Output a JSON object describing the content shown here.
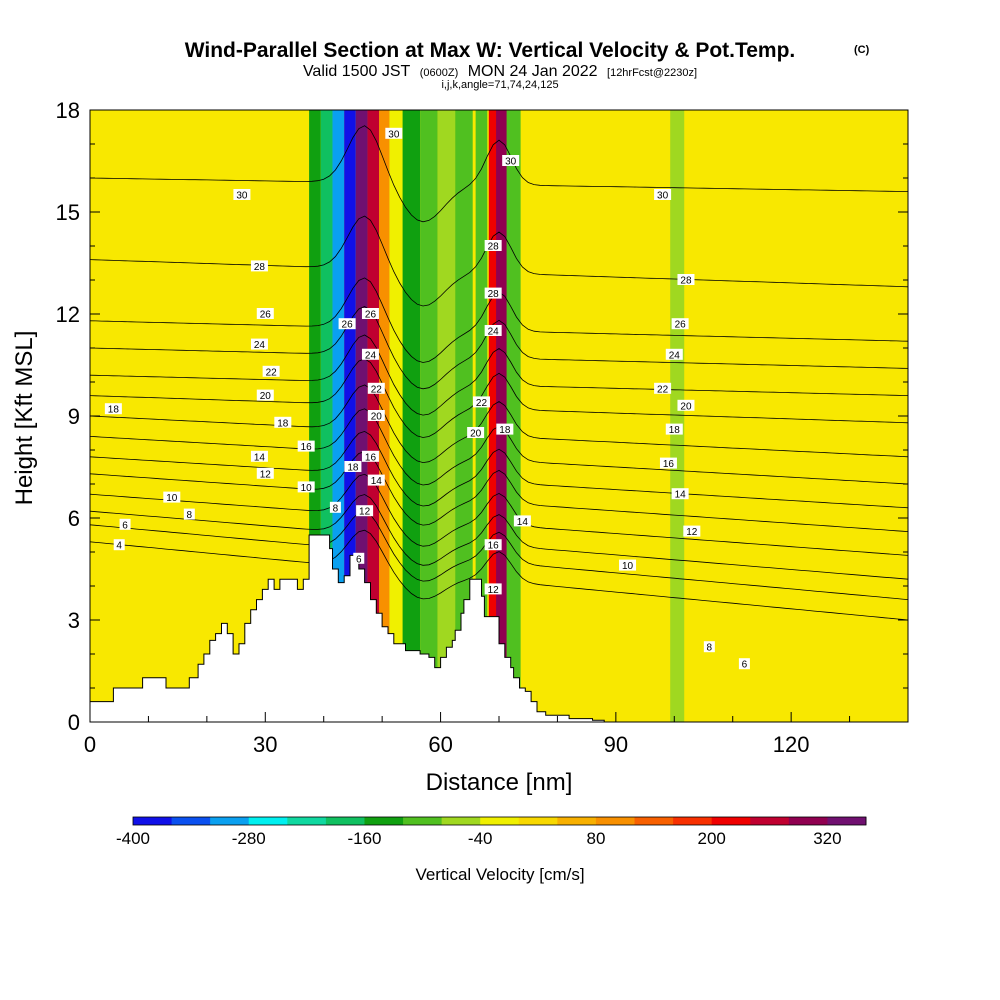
{
  "chart_data": {
    "type": "heatmap",
    "title": "Wind-Parallel Section at Max W: Vertical Velocity & Pot.Temp.",
    "title_mark": "(C)",
    "subtitle_main": "Valid 1500 JST",
    "subtitle_utc": "(0600Z)",
    "subtitle_date": "MON 24 Jan 2022",
    "subtitle_fcst": "[12hrFcst@2230z]",
    "index_line": "i,j,k,angle=71,74,24,125",
    "xlabel": "Distance [nm]",
    "ylabel": "Height [Kft MSL]",
    "xlim": [
      0,
      140
    ],
    "ylim": [
      0,
      18
    ],
    "x_ticks": [
      0,
      30,
      60,
      90,
      120
    ],
    "y_ticks": [
      0,
      3,
      6,
      9,
      12,
      15,
      18
    ],
    "colorbar": {
      "label": "Vertical Velocity [cm/s]",
      "min": -400,
      "max": 360,
      "step": 40,
      "tick_values": [
        -400,
        -280,
        -160,
        -40,
        80,
        200,
        320
      ],
      "colors": [
        "#1010e8",
        "#0a50f0",
        "#0aa0f0",
        "#00f0f0",
        "#10d8a0",
        "#10c060",
        "#10a010",
        "#50c020",
        "#a0d820",
        "#f0f000",
        "#f8d800",
        "#f8b000",
        "#f89000",
        "#f86000",
        "#f83000",
        "#f00000",
        "#c00030",
        "#900050",
        "#701070"
      ]
    },
    "velocity_columns": [
      {
        "x": 38.5,
        "value": -140
      },
      {
        "x": 40.5,
        "value": -180
      },
      {
        "x": 42.5,
        "value": -300
      },
      {
        "x": 44.5,
        "value": -400
      },
      {
        "x": 46.5,
        "value": 360
      },
      {
        "x": 48.5,
        "value": 240
      },
      {
        "x": 50.5,
        "value": 100
      },
      {
        "x": 52.5,
        "value": -40
      },
      {
        "x": 55,
        "value": -160
      },
      {
        "x": 58,
        "value": -100
      },
      {
        "x": 61,
        "value": -60
      },
      {
        "x": 64,
        "value": -120
      },
      {
        "x": 67,
        "value": -100
      },
      {
        "x": 69,
        "value": 200
      },
      {
        "x": 70.5,
        "value": 280
      },
      {
        "x": 72.5,
        "value": -120
      },
      {
        "x": 100.5,
        "value": -80
      }
    ],
    "terrain": {
      "x": [
        0,
        4,
        4,
        9,
        9,
        13,
        13,
        17,
        17,
        18.5,
        18.5,
        19.5,
        19.5,
        20.5,
        20.5,
        21.5,
        21.5,
        22.5,
        22.5,
        23.5,
        23.5,
        24.5,
        24.5,
        25.5,
        25.5,
        26.5,
        26.5,
        27.5,
        27.5,
        28.5,
        28.5,
        29.5,
        29.5,
        30.5,
        30.5,
        31.5,
        31.5,
        32.5,
        32.5,
        35.5,
        35.5,
        36.5,
        36.5,
        37.5,
        37.5,
        41,
        41,
        41.5,
        41.5,
        42.5,
        42.5,
        43.5,
        43.5,
        44.5,
        44.5,
        46,
        46,
        47,
        47,
        48,
        48,
        49,
        49,
        50,
        50,
        51,
        51,
        52,
        52,
        53,
        53,
        54,
        54,
        56.5,
        56.5,
        58,
        58,
        59,
        59,
        60,
        60,
        61,
        61,
        62,
        62,
        62.5,
        62.5,
        63.5,
        63.5,
        64,
        64,
        65,
        65,
        66,
        66,
        67,
        67,
        67.5,
        67.5,
        70,
        70,
        71,
        71,
        72,
        72,
        72.5,
        72.5,
        73.5,
        73.5,
        74.5,
        74.5,
        75.5,
        75.5,
        76.5,
        76.5,
        78,
        78,
        82,
        82,
        86,
        86,
        88,
        88,
        90,
        90,
        95,
        95,
        140
      ],
      "y": [
        0.6,
        0.6,
        1.0,
        1.0,
        1.3,
        1.3,
        1.0,
        1.0,
        1.3,
        1.3,
        1.7,
        1.7,
        2.0,
        2.0,
        2.4,
        2.4,
        2.6,
        2.6,
        2.9,
        2.9,
        2.6,
        2.6,
        2.0,
        2.0,
        2.3,
        2.3,
        2.9,
        2.9,
        3.3,
        3.3,
        3.6,
        3.6,
        3.9,
        3.9,
        4.2,
        4.2,
        3.9,
        3.9,
        4.2,
        4.2,
        3.9,
        3.9,
        4.2,
        4.2,
        5.5,
        5.5,
        5.1,
        5.1,
        4.5,
        4.5,
        4.1,
        4.1,
        4.3,
        4.3,
        4.9,
        4.9,
        4.5,
        4.5,
        4.1,
        4.1,
        3.6,
        3.6,
        3.2,
        3.2,
        2.8,
        2.8,
        2.6,
        2.6,
        2.3,
        2.3,
        2.3,
        2.3,
        2.1,
        2.1,
        2.0,
        2.0,
        1.9,
        1.9,
        1.6,
        1.6,
        1.9,
        1.9,
        2.2,
        2.2,
        2.4,
        2.4,
        2.7,
        2.7,
        3.2,
        3.2,
        3.6,
        3.6,
        4.2,
        4.2,
        4.2,
        4.2,
        3.7,
        3.7,
        3.1,
        3.1,
        2.3,
        2.3,
        1.9,
        1.9,
        1.6,
        1.6,
        1.3,
        1.3,
        1.0,
        1.0,
        0.9,
        0.9,
        0.6,
        0.6,
        0.3,
        0.3,
        0.2,
        0.2,
        0.1,
        0.1,
        0.05,
        0.05,
        0,
        0
      ]
    },
    "isentropes": [
      {
        "label": "4",
        "y_left": 5.3,
        "y_right": 3.0
      },
      {
        "label": "6",
        "y_left": 5.8,
        "y_right": 3.6
      },
      {
        "label": "8",
        "y_left": 6.2,
        "y_right": 4.2
      },
      {
        "label": "10",
        "y_left": 6.7,
        "y_right": 4.9
      },
      {
        "label": "12",
        "y_left": 7.3,
        "y_right": 5.6
      },
      {
        "label": "14",
        "y_left": 7.8,
        "y_right": 6.3
      },
      {
        "label": "16",
        "y_left": 8.4,
        "y_right": 7.0
      },
      {
        "label": "18",
        "y_left": 9.0,
        "y_right": 7.8
      },
      {
        "label": "20",
        "y_left": 9.6,
        "y_right": 8.8
      },
      {
        "label": "22",
        "y_left": 10.2,
        "y_right": 9.6
      },
      {
        "label": "24",
        "y_left": 11.0,
        "y_right": 10.4
      },
      {
        "label": "26",
        "y_left": 11.8,
        "y_right": 11.2
      },
      {
        "label": "28",
        "y_left": 13.6,
        "y_right": 12.8
      },
      {
        "label": "30",
        "y_left": 16.0,
        "y_right": 15.6
      }
    ],
    "contour_labels": [
      {
        "text": "30",
        "x": 26,
        "y": 15.5
      },
      {
        "text": "28",
        "x": 29,
        "y": 13.4
      },
      {
        "text": "26",
        "x": 30,
        "y": 12.0
      },
      {
        "text": "24",
        "x": 29,
        "y": 11.1
      },
      {
        "text": "22",
        "x": 31,
        "y": 10.3
      },
      {
        "text": "20",
        "x": 30,
        "y": 9.6
      },
      {
        "text": "18",
        "x": 33,
        "y": 8.8
      },
      {
        "text": "18",
        "x": 4,
        "y": 9.2
      },
      {
        "text": "16",
        "x": 37,
        "y": 8.1
      },
      {
        "text": "14",
        "x": 29,
        "y": 7.8
      },
      {
        "text": "12",
        "x": 30,
        "y": 7.3
      },
      {
        "text": "10",
        "x": 14,
        "y": 6.6
      },
      {
        "text": "10",
        "x": 37,
        "y": 6.9
      },
      {
        "text": "8",
        "x": 17,
        "y": 6.1
      },
      {
        "text": "6",
        "x": 6,
        "y": 5.8
      },
      {
        "text": "4",
        "x": 5,
        "y": 5.2
      },
      {
        "text": "8",
        "x": 42,
        "y": 6.3
      },
      {
        "text": "30",
        "x": 52,
        "y": 17.3
      },
      {
        "text": "26",
        "x": 44,
        "y": 11.7
      },
      {
        "text": "26",
        "x": 48,
        "y": 12.0
      },
      {
        "text": "24",
        "x": 48,
        "y": 10.8
      },
      {
        "text": "22",
        "x": 49,
        "y": 9.8
      },
      {
        "text": "20",
        "x": 49,
        "y": 9.0
      },
      {
        "text": "18",
        "x": 45,
        "y": 7.5
      },
      {
        "text": "16",
        "x": 48,
        "y": 7.8
      },
      {
        "text": "14",
        "x": 49,
        "y": 7.1
      },
      {
        "text": "12",
        "x": 47,
        "y": 6.2
      },
      {
        "text": "6",
        "x": 46,
        "y": 4.8
      },
      {
        "text": "30",
        "x": 72,
        "y": 16.5
      },
      {
        "text": "28",
        "x": 69,
        "y": 14.0
      },
      {
        "text": "28",
        "x": 69,
        "y": 12.6
      },
      {
        "text": "24",
        "x": 69,
        "y": 11.5
      },
      {
        "text": "22",
        "x": 67,
        "y": 9.4
      },
      {
        "text": "20",
        "x": 66,
        "y": 8.5
      },
      {
        "text": "18",
        "x": 71,
        "y": 8.6
      },
      {
        "text": "16",
        "x": 69,
        "y": 5.2
      },
      {
        "text": "14",
        "x": 74,
        "y": 5.9
      },
      {
        "text": "12",
        "x": 69,
        "y": 3.9
      },
      {
        "text": "30",
        "x": 98,
        "y": 15.5
      },
      {
        "text": "28",
        "x": 102,
        "y": 13.0
      },
      {
        "text": "26",
        "x": 101,
        "y": 11.7
      },
      {
        "text": "24",
        "x": 100,
        "y": 10.8
      },
      {
        "text": "22",
        "x": 98,
        "y": 9.8
      },
      {
        "text": "20",
        "x": 102,
        "y": 9.3
      },
      {
        "text": "18",
        "x": 100,
        "y": 8.6
      },
      {
        "text": "16",
        "x": 99,
        "y": 7.6
      },
      {
        "text": "14",
        "x": 101,
        "y": 6.7
      },
      {
        "text": "12",
        "x": 103,
        "y": 5.6
      },
      {
        "text": "10",
        "x": 92,
        "y": 4.6
      },
      {
        "text": "8",
        "x": 106,
        "y": 2.2
      },
      {
        "text": "6",
        "x": 112,
        "y": 1.7
      }
    ]
  }
}
